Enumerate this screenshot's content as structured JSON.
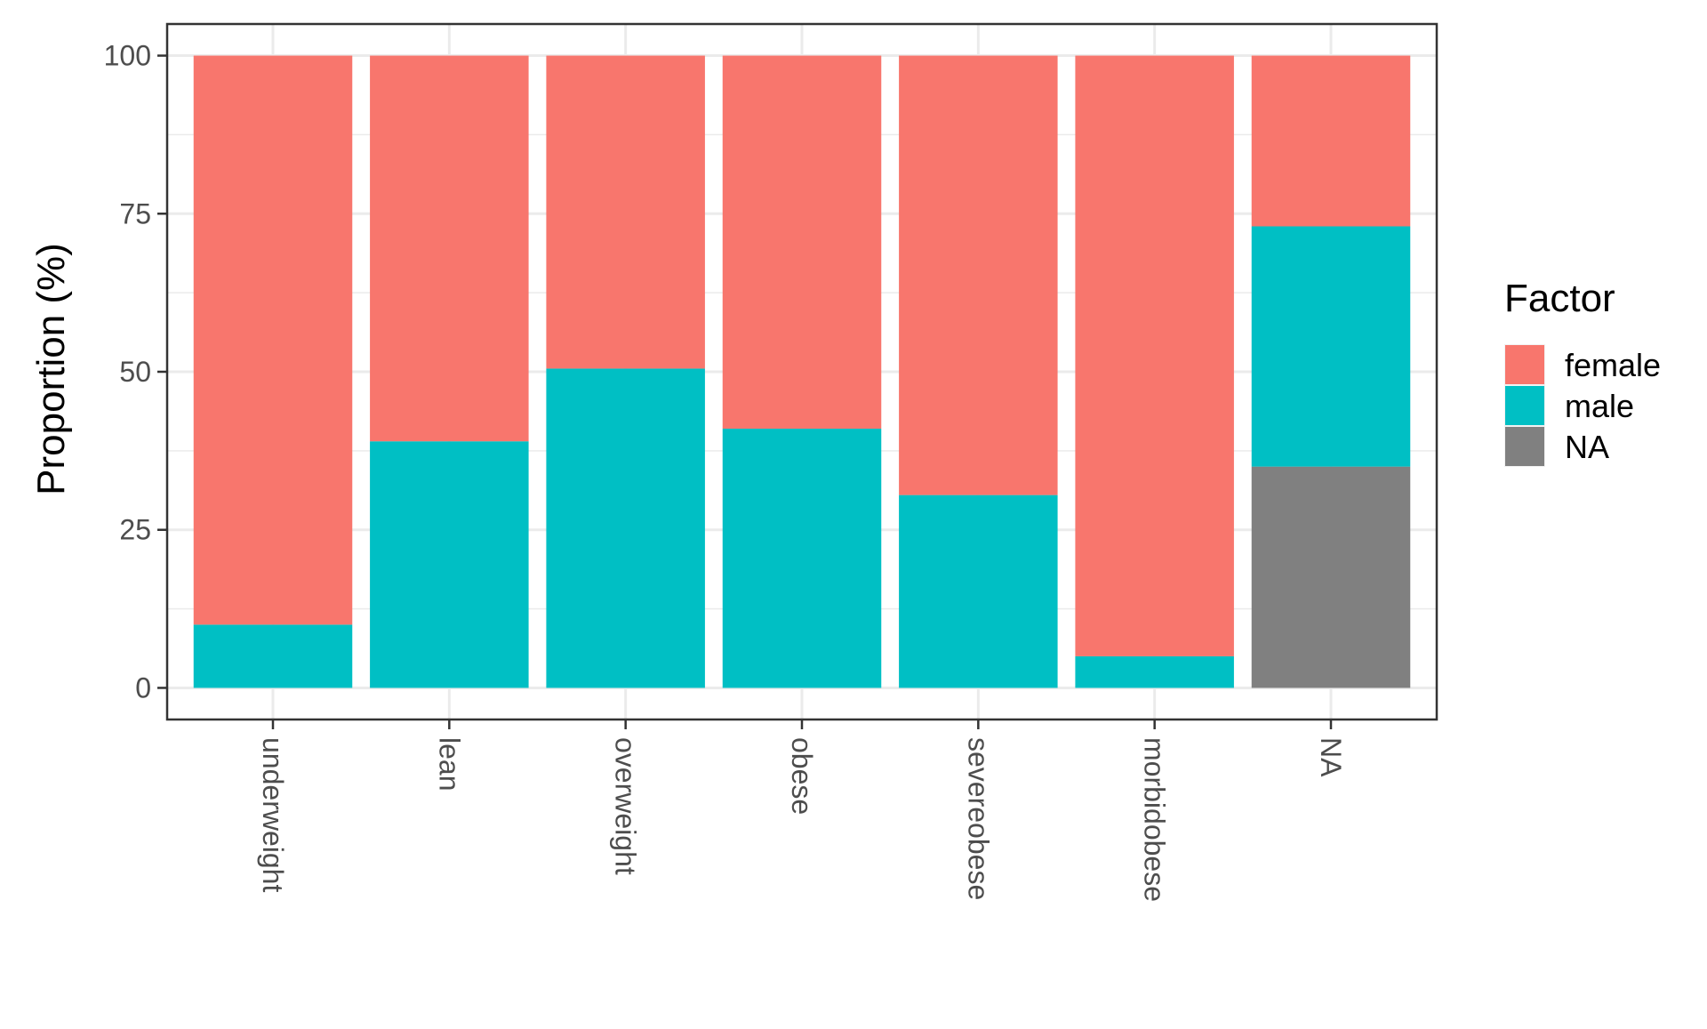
{
  "chart_data": {
    "type": "bar",
    "stacked": true,
    "title": "",
    "xlabel": "",
    "ylabel": "Proportion (%)",
    "ylim": [
      -5,
      105
    ],
    "yticks": [
      0,
      25,
      50,
      75,
      100
    ],
    "ytick_labels": [
      "0",
      "25",
      "50",
      "75",
      "100"
    ],
    "grid": true,
    "categories": [
      "underweight",
      "lean",
      "overweight",
      "obese",
      "severeobese",
      "morbidobese",
      "NA"
    ],
    "series": [
      {
        "name": "NA",
        "color": "#808080",
        "values": [
          0,
          0,
          0,
          0,
          0,
          0,
          35
        ]
      },
      {
        "name": "male",
        "color": "#00BFC4",
        "values": [
          10,
          39,
          50.5,
          41,
          30.5,
          5,
          38
        ]
      },
      {
        "name": "female",
        "color": "#F8766D",
        "values": [
          90,
          61,
          49.5,
          59,
          69.5,
          95,
          27
        ]
      }
    ],
    "legend": {
      "title": "Factor",
      "position": "right",
      "entries": [
        {
          "label": "female",
          "color": "#F8766D"
        },
        {
          "label": "male",
          "color": "#00BFC4"
        },
        {
          "label": "NA",
          "color": "#808080"
        }
      ]
    }
  }
}
